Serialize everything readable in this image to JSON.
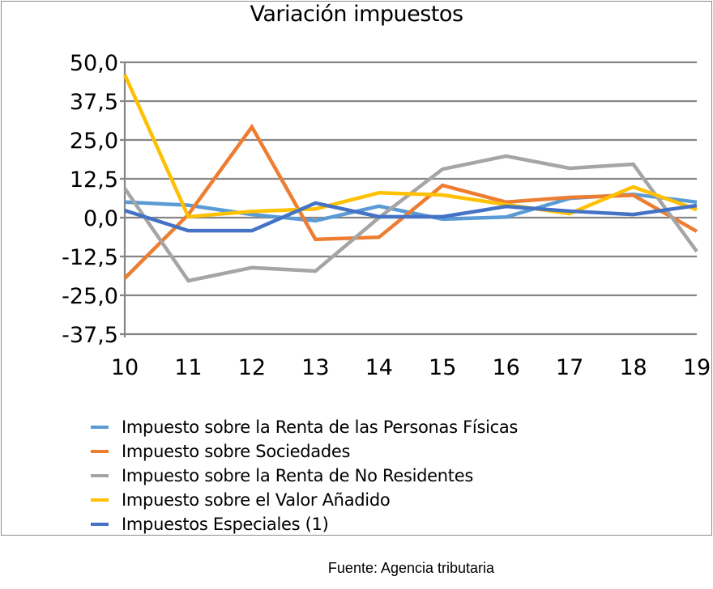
{
  "chart_data": {
    "type": "line",
    "title": "Variación impuestos",
    "xlabel": "",
    "ylabel": "",
    "x": [
      "10",
      "11",
      "12",
      "13",
      "14",
      "15",
      "16",
      "17",
      "18",
      "19"
    ],
    "ylim": [
      -37.5,
      50.0
    ],
    "yticks": [
      "50,0",
      "37,5",
      "25,0",
      "12,5",
      "0,0",
      "-12,5",
      "-25,0",
      "-37,5"
    ],
    "ytick_values": [
      50.0,
      37.5,
      25.0,
      12.5,
      0.0,
      -12.5,
      -25.0,
      -37.5
    ],
    "grid": true,
    "legend_position": "bottom",
    "series": [
      {
        "name": "Impuesto sobre la Renta de las Personas Físicas",
        "color": "#5b9bd5",
        "values": [
          5.0,
          4.0,
          1.0,
          -1.0,
          3.7,
          -0.5,
          0.2,
          6.2,
          7.5,
          5.0
        ]
      },
      {
        "name": "Impuesto sobre Sociedades",
        "color": "#ed7d31",
        "values": [
          -19.5,
          1.0,
          29.2,
          -7.0,
          -6.3,
          10.4,
          5.0,
          6.5,
          7.2,
          -4.4
        ]
      },
      {
        "name": "Impuesto sobre la Renta de No Residentes",
        "color": "#a5a5a5",
        "values": [
          9.4,
          -20.3,
          -16.1,
          -17.2,
          0.0,
          15.6,
          19.8,
          15.9,
          17.2,
          -10.9
        ]
      },
      {
        "name": "Impuesto sobre el Valor Añadido",
        "color": "#ffc000",
        "values": [
          46.0,
          0.3,
          2.0,
          2.8,
          8.0,
          7.3,
          4.2,
          1.3,
          9.9,
          2.6
        ]
      },
      {
        "name": "Impuestos Especiales (1)",
        "color": "#4472c4",
        "values": [
          2.3,
          -4.2,
          -4.2,
          4.7,
          0.3,
          0.3,
          3.6,
          2.1,
          1.0,
          3.9
        ]
      }
    ]
  },
  "source": "Fuente: Agencia tributaria"
}
